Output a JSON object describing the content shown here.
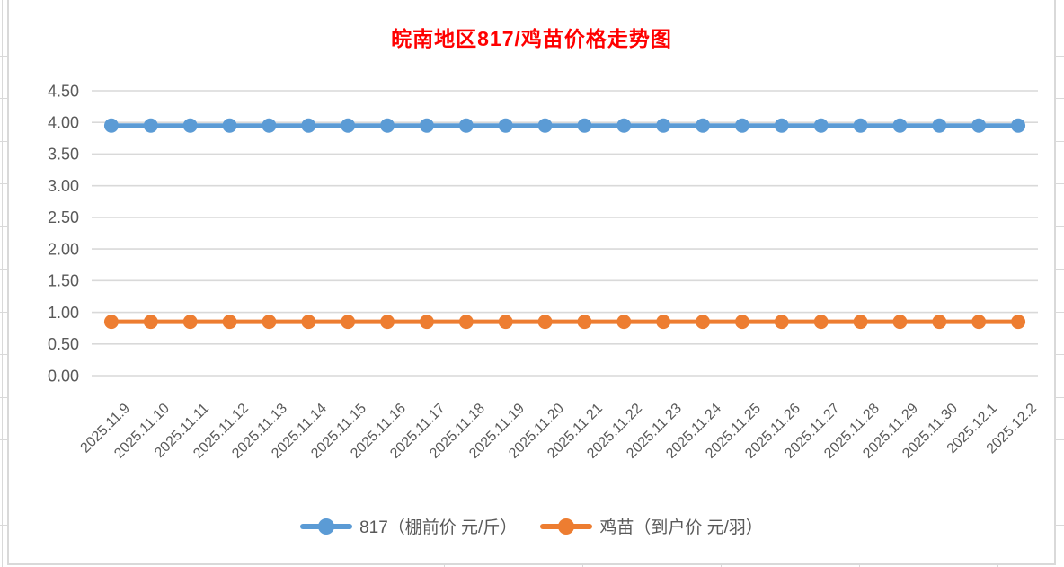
{
  "chart_data": {
    "type": "line",
    "title": "皖南地区817/鸡苗价格走势图",
    "categories": [
      "2025.11.9",
      "2025.11.10",
      "2025.11.11",
      "2025.11.12",
      "2025.11.13",
      "2025.11.14",
      "2025.11.15",
      "2025.11.16",
      "2025.11.17",
      "2025.11.18",
      "2025.11.19",
      "2025.11.20",
      "2025.11.21",
      "2025.11.22",
      "2025.11.23",
      "2025.11.24",
      "2025.11.25",
      "2025.11.26",
      "2025.11.27",
      "2025.11.28",
      "2025.11.29",
      "2025.11.30",
      "2025.12.1",
      "2025.12.2"
    ],
    "series": [
      {
        "name": "817（棚前价 元/斤）",
        "color": "#5B9BD5",
        "values": [
          3.95,
          3.95,
          3.95,
          3.95,
          3.95,
          3.95,
          3.95,
          3.95,
          3.95,
          3.95,
          3.95,
          3.95,
          3.95,
          3.95,
          3.95,
          3.95,
          3.95,
          3.95,
          3.95,
          3.95,
          3.95,
          3.95,
          3.95,
          3.95
        ]
      },
      {
        "name": "鸡苗（到户价 元/羽）",
        "color": "#ED7D31",
        "values": [
          0.85,
          0.85,
          0.85,
          0.85,
          0.85,
          0.85,
          0.85,
          0.85,
          0.85,
          0.85,
          0.85,
          0.85,
          0.85,
          0.85,
          0.85,
          0.85,
          0.85,
          0.85,
          0.85,
          0.85,
          0.85,
          0.85,
          0.85,
          0.85
        ]
      }
    ],
    "xlabel": "",
    "ylabel": "",
    "ylim": [
      0,
      4.5
    ],
    "ytick_step": 0.5,
    "ytick_labels": [
      "0.00",
      "0.50",
      "1.00",
      "1.50",
      "2.00",
      "2.50",
      "3.00",
      "3.50",
      "4.00",
      "4.50"
    ],
    "grid": true,
    "legend_position": "bottom",
    "colors": {
      "title": "#FF0000",
      "axis_text": "#595959",
      "gridline": "#D9D9D9"
    }
  }
}
